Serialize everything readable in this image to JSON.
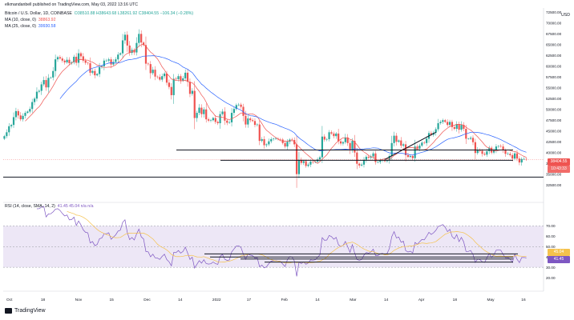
{
  "header": {
    "title": "elkmandanbell published on TradingView.com, May 03, 2022 13:16 UTC",
    "symbol": "Bitcoin / U.S. Dollar, 1D, COINBASE",
    "ohlc": "O38510.88  H38643.68  L38261.92  C38404.55  −106.34 (−0.28%)",
    "ma10_label": "MA (10, close, 0)",
    "ma10_value": "38863.92",
    "ma25_label": "MA (25, close, 0)",
    "ma25_value": "39930.58",
    "rsi_label": "RSI (14, close, SMA, 14, 2)",
    "rsi_values": "41.45  45.04  n/a  n/a",
    "currency": "USD",
    "logo_text": "TradingView"
  },
  "colors": {
    "up": "#26a69a",
    "down": "#ef5350",
    "ma10": "#ef5350",
    "ma25": "#2962ff",
    "rsi": "#7e57c2",
    "rsi_ma": "#f5c24c",
    "rsi_band": "#ede7f6",
    "line": "#131722"
  },
  "chart_data": [
    {
      "type": "candlestick",
      "title": "Bitcoin / U.S. Dollar, 1D, COINBASE",
      "ylim": [
        29000,
        73500
      ],
      "y_ticks": [
        32500,
        35000,
        37500,
        40000,
        42500,
        45000,
        47500,
        50000,
        52500,
        55000,
        57500,
        60000,
        62500,
        65000,
        67500,
        70000,
        72500
      ],
      "x_tick_labels": [
        "Oct",
        "18",
        "Nov",
        "15",
        "Dec",
        "14",
        "2022",
        "17",
        "Feb",
        "14",
        "Mar",
        "14",
        "Apr",
        "18",
        "May",
        "16"
      ],
      "current_price": "38404.55",
      "countdown": "10:43:33",
      "key_levels": [
        {
          "name": "resistance",
          "y": 40600
        },
        {
          "name": "support",
          "y": 38200
        },
        {
          "name": "lower support",
          "y": 34300
        }
      ],
      "trendline": {
        "from": {
          "i": 164,
          "y": 38400
        },
        "to": {
          "i": 186,
          "y": 44700
        }
      },
      "close": [
        43800,
        44700,
        46100,
        46400,
        48200,
        49600,
        48600,
        47700,
        48500,
        49200,
        49500,
        50100,
        51700,
        52500,
        54100,
        54300,
        55800,
        56800,
        55100,
        57300,
        57400,
        58900,
        61600,
        62100,
        61800,
        61300,
        60900,
        61500,
        60700,
        60900,
        62200,
        60800,
        63000,
        62300,
        61300,
        60800,
        60700,
        58500,
        58900,
        57900,
        58200,
        59800,
        60000,
        61300,
        61300,
        61600,
        60400,
        61000,
        61600,
        62700,
        63000,
        66000,
        67300,
        64800,
        63100,
        63800,
        63200,
        65400,
        67500,
        65500,
        64900,
        60600,
        60500,
        58400,
        59200,
        57600,
        57500,
        56900,
        57700,
        58300,
        56200,
        55200,
        53300,
        57100,
        57000,
        57700,
        56700,
        57200,
        58500,
        56400,
        53600,
        54300,
        48000,
        49200,
        50400,
        48900,
        50000,
        47700,
        47400,
        47500,
        48000,
        47100,
        46800,
        48900,
        49500,
        47400,
        46900,
        47000,
        49200,
        50100,
        51000,
        51100,
        50600,
        48500,
        46500,
        47900,
        47500,
        47300,
        46400,
        46500,
        42700,
        43100,
        41700,
        41900,
        42600,
        43100,
        43200,
        43200,
        43100,
        43000,
        42200,
        41400,
        42500,
        43000,
        42900,
        41900,
        35000,
        38300,
        37600,
        38000,
        36900,
        37200,
        37900,
        37800,
        37900,
        38400,
        38900,
        43700,
        43000,
        43100,
        44700,
        44400,
        43800,
        44400,
        42600,
        42100,
        42400,
        43500,
        42200,
        40600,
        42700,
        40000,
        37400,
        37000,
        37200,
        38300,
        39000,
        38800,
        39100,
        39800,
        37800,
        37800,
        38200,
        38300,
        38000,
        38200,
        39200,
        42200,
        43900,
        42500,
        42800,
        41600,
        41900,
        39400,
        39000,
        39200,
        38700,
        41400,
        40900,
        41600,
        42300,
        42200,
        43200,
        44500,
        44100,
        44600,
        45400,
        46800,
        47100,
        47500,
        47100,
        46400,
        47100,
        45900,
        45500,
        46600,
        45300,
        46400,
        45500,
        43200,
        43200,
        43400,
        42400,
        39900,
        40600,
        40400,
        39700,
        39500,
        40300,
        41100,
        40000,
        40500,
        41400,
        41500,
        41400,
        40500,
        39700,
        39700,
        39400,
        38600,
        39800,
        38600,
        37700,
        38500,
        38510,
        38404
      ],
      "ma10": "10-day simple moving average of close",
      "ma25": "25-day simple moving average of close"
    },
    {
      "type": "line",
      "title": "RSI (14, close, SMA, 14, 2)",
      "ylim": [
        10,
        85
      ],
      "y_ticks": [
        20,
        30,
        40,
        50,
        60,
        70
      ],
      "overbought": 70,
      "oversold": 30,
      "midline": 50,
      "key_levels": [
        {
          "name": "rsi-level-upper",
          "y": 43
        },
        {
          "name": "rsi-level-mid",
          "y": 40
        },
        {
          "name": "rsi-level-low",
          "y": 38
        },
        {
          "name": "rsi-level-bottom",
          "y": 35
        }
      ],
      "current_rsi": "41.45",
      "current_rsi_ma": "45.04",
      "series": [
        {
          "name": "RSI",
          "values": "computed from close (Wilder RSI, period 14)"
        },
        {
          "name": "RSI MA",
          "values": "14-period SMA of RSI"
        }
      ]
    }
  ]
}
